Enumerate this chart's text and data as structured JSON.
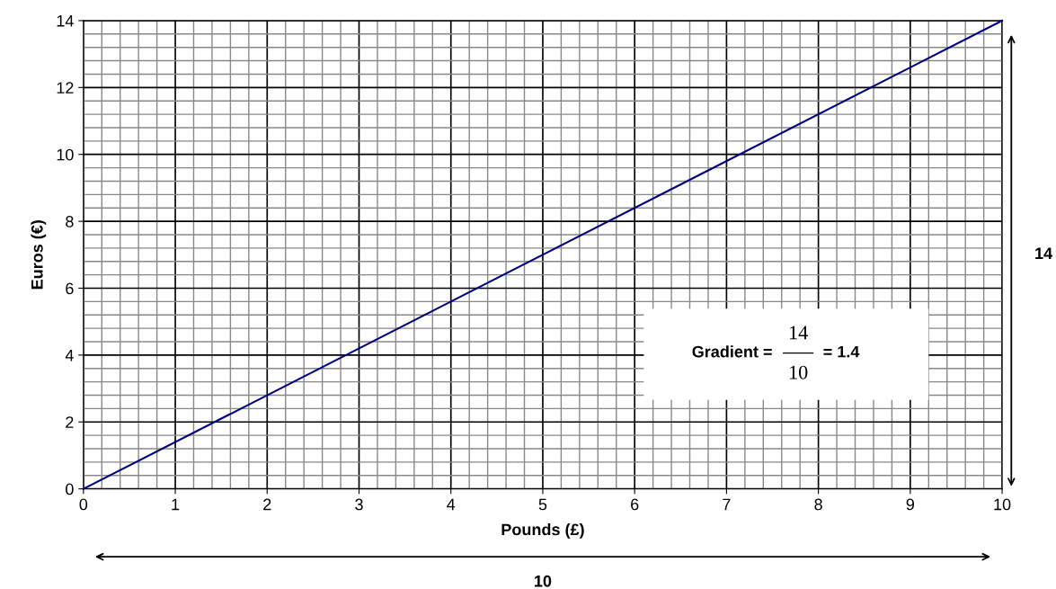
{
  "chart_data": {
    "type": "line",
    "xlabel": "Pounds (£)",
    "ylabel": "Euros (€)",
    "x": [
      0,
      10
    ],
    "series": [
      {
        "color": "#000080",
        "values": [
          0,
          14
        ]
      }
    ],
    "xlim": [
      0,
      10
    ],
    "ylim": [
      0,
      14
    ],
    "xticks": [
      0,
      1,
      2,
      3,
      4,
      5,
      6,
      7,
      8,
      9,
      10
    ],
    "yticks": [
      0,
      2,
      4,
      6,
      8,
      10,
      12,
      14
    ],
    "grid": true,
    "marker": "none",
    "line_style": "solid",
    "annotations": [
      "Gradient =",
      "14",
      "10",
      "= 1.4",
      "14",
      "10"
    ]
  }
}
